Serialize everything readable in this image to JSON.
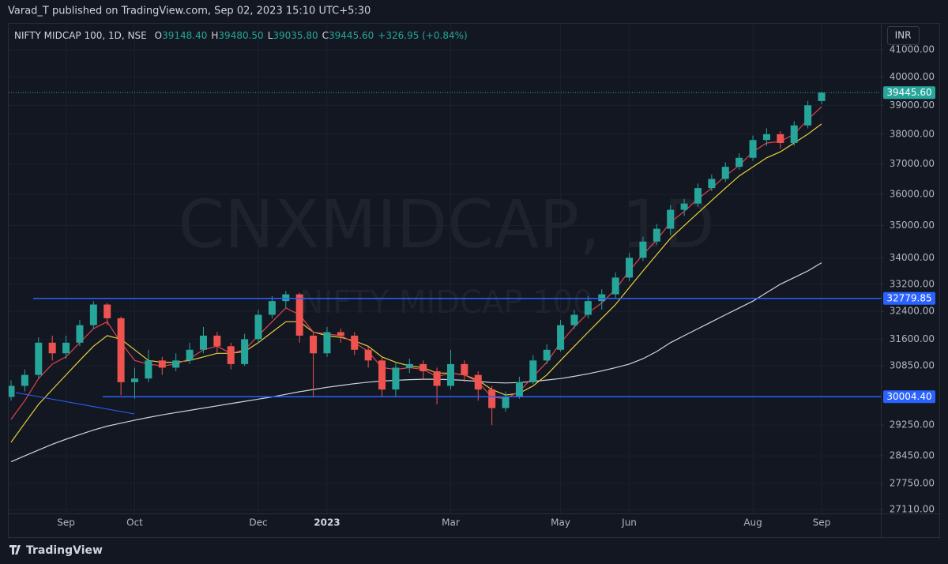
{
  "header": {
    "publisher": "Varad_T published on TradingView.com, Sep 02, 2023 15:10 UTC+5:30"
  },
  "footer": {
    "brand": "TradingView"
  },
  "chart_data": {
    "type": "candlestick",
    "title": "NIFTY MIDCAP 100, 1D, NSE",
    "ohlc_legend": [
      {
        "label": "O",
        "value": "39148.40"
      },
      {
        "label": "H",
        "value": "39480.50"
      },
      {
        "label": "L",
        "value": "39035.80"
      },
      {
        "label": "C",
        "value": "39445.60"
      }
    ],
    "change": "+326.95 (+0.84%)",
    "currency": "INR",
    "watermark": [
      "CNXMIDCAP, 1D",
      "NIFTY MIDCAP 100"
    ],
    "categories": [
      null,
      null,
      null,
      null,
      "Sep",
      null,
      null,
      null,
      null,
      "Oct",
      null,
      null,
      null,
      null,
      null,
      null,
      null,
      null,
      "Dec",
      null,
      null,
      null,
      null,
      "2023",
      null,
      null,
      null,
      null,
      null,
      null,
      null,
      null,
      "Mar",
      null,
      null,
      null,
      null,
      null,
      null,
      null,
      "May",
      null,
      null,
      null,
      null,
      "Jun",
      null,
      null,
      null,
      null,
      null,
      null,
      null,
      null,
      "Aug",
      null,
      null,
      null,
      null,
      "Sep"
    ],
    "open": [
      30000,
      30300,
      30600,
      31500,
      31200,
      31500,
      32000,
      32600,
      32200,
      30400,
      30500,
      31000,
      30800,
      31000,
      31300,
      31700,
      31400,
      30900,
      31600,
      32300,
      32700,
      32900,
      31700,
      31200,
      31800,
      31700,
      31300,
      31000,
      30200,
      30800,
      30900,
      30700,
      30300,
      30900,
      30600,
      30200,
      29700,
      30000,
      30400,
      31000,
      31300,
      32000,
      32300,
      32700,
      32900,
      33400,
      34000,
      34500,
      34900,
      35500,
      35700,
      36200,
      36500,
      36900,
      37200,
      37800,
      38000,
      37700,
      38300,
      39148.4
    ],
    "high": [
      30450,
      30750,
      31650,
      31700,
      31700,
      32150,
      32700,
      32650,
      32250,
      30800,
      31300,
      31100,
      31200,
      31500,
      31950,
      31800,
      31500,
      31750,
      32450,
      32850,
      33000,
      32950,
      31800,
      31950,
      31900,
      31800,
      31400,
      31100,
      30950,
      31050,
      31000,
      30800,
      31300,
      31000,
      30700,
      30300,
      30150,
      30550,
      31150,
      31450,
      32150,
      32450,
      32850,
      33050,
      33550,
      34150,
      34650,
      35050,
      35650,
      35850,
      36350,
      36650,
      37050,
      37350,
      37950,
      38200,
      38100,
      38450,
      39150,
      39480.5
    ],
    "low": [
      29900,
      30150,
      30500,
      31000,
      31050,
      31400,
      31900,
      32000,
      30050,
      29950,
      30400,
      30600,
      30700,
      30900,
      31200,
      31200,
      30750,
      30850,
      31500,
      32200,
      32500,
      31500,
      30000,
      31100,
      31500,
      31150,
      30800,
      30000,
      30000,
      30650,
      30500,
      29800,
      30200,
      30400,
      29900,
      29250,
      29600,
      29950,
      30350,
      30900,
      31250,
      31900,
      32200,
      32450,
      32800,
      33300,
      33900,
      34400,
      34700,
      35300,
      35600,
      36100,
      36400,
      36800,
      37100,
      37600,
      37500,
      37600,
      38200,
      39035.8
    ],
    "close": [
      30300,
      30600,
      31500,
      31200,
      31500,
      32000,
      32600,
      32200,
      30400,
      30500,
      31000,
      30800,
      31000,
      31300,
      31700,
      31400,
      30900,
      31600,
      32300,
      32700,
      32900,
      31700,
      31200,
      31800,
      31700,
      31300,
      31000,
      30200,
      30800,
      30900,
      30700,
      30300,
      30900,
      30600,
      30200,
      29700,
      30000,
      30400,
      31000,
      31300,
      32000,
      32300,
      32700,
      32900,
      33400,
      34000,
      34500,
      34900,
      35500,
      35700,
      36200,
      36500,
      36900,
      37200,
      37800,
      38000,
      37700,
      38300,
      39000,
      39445.6
    ],
    "up_color": "#26a69a",
    "down_color": "#ef5350",
    "series": [
      {
        "color": "#d1d4dc",
        "values": [
          28300,
          28450,
          28600,
          28750,
          28880,
          29000,
          29120,
          29220,
          29300,
          29380,
          29450,
          29520,
          29580,
          29640,
          29700,
          29760,
          29820,
          29880,
          29940,
          30000,
          30070,
          30140,
          30200,
          30260,
          30310,
          30360,
          30400,
          30430,
          30450,
          30470,
          30480,
          30480,
          30470,
          30450,
          30420,
          30390,
          30380,
          30390,
          30420,
          30460,
          30500,
          30560,
          30630,
          30710,
          30800,
          30900,
          31050,
          31250,
          31500,
          31700,
          31900,
          32100,
          32300,
          32500,
          32700,
          32950,
          33200,
          33400,
          33600,
          33850
        ]
      },
      {
        "color": "#e8d03a",
        "values": [
          28800,
          29300,
          29800,
          30200,
          30600,
          31000,
          31400,
          31700,
          31600,
          31300,
          31000,
          30950,
          30950,
          31000,
          31100,
          31200,
          31200,
          31250,
          31500,
          31800,
          32100,
          32100,
          31800,
          31700,
          31650,
          31550,
          31400,
          31100,
          30950,
          30850,
          30800,
          30650,
          30650,
          30600,
          30450,
          30200,
          30050,
          30100,
          30300,
          30600,
          31000,
          31400,
          31800,
          32200,
          32600,
          33100,
          33600,
          34100,
          34600,
          35000,
          35400,
          35800,
          36200,
          36600,
          36900,
          37200,
          37400,
          37700,
          38000,
          38350
        ]
      },
      {
        "color": "#e0424f",
        "values": [
          29400,
          29900,
          30500,
          30900,
          31100,
          31500,
          31900,
          32100,
          31500,
          31000,
          30900,
          30850,
          30900,
          31050,
          31300,
          31400,
          31200,
          31300,
          31700,
          32100,
          32500,
          32300,
          31800,
          31750,
          31700,
          31500,
          31250,
          30800,
          30750,
          30800,
          30750,
          30550,
          30650,
          30600,
          30400,
          30000,
          29950,
          30150,
          30550,
          30950,
          31500,
          31950,
          32350,
          32650,
          33050,
          33600,
          34100,
          34550,
          35100,
          35450,
          35850,
          36200,
          36600,
          36950,
          37400,
          37700,
          37750,
          38000,
          38500,
          38950
        ]
      }
    ],
    "hlines": [
      {
        "value": 32779.85,
        "label": "32779.85",
        "color": "#2962ff"
      },
      {
        "value": 30004.4,
        "label": "30004.40",
        "color": "#2962ff"
      }
    ],
    "last_price": {
      "value": 39445.6,
      "label": "39445.60",
      "color": "#26a69a"
    },
    "log_scale": true,
    "grid": true,
    "ylim": [
      27014,
      41970
    ],
    "yticks": [
      {
        "value": 41000,
        "label": "41000.00"
      },
      {
        "value": 40000,
        "label": "40000.00"
      },
      {
        "value": 39000,
        "label": "39000.00"
      },
      {
        "value": 38000,
        "label": "38000.00"
      },
      {
        "value": 37000,
        "label": "37000.00"
      },
      {
        "value": 36000,
        "label": "36000.00"
      },
      {
        "value": 35000,
        "label": "35000.00"
      },
      {
        "value": 34000,
        "label": "34000.00"
      },
      {
        "value": 33200,
        "label": "33200.00"
      },
      {
        "value": 32400,
        "label": "32400.00"
      },
      {
        "value": 31600,
        "label": "31600.00"
      },
      {
        "value": 30850,
        "label": "30850.00"
      },
      {
        "value": 29250,
        "label": "29250.00"
      },
      {
        "value": 28450,
        "label": "28450.00"
      },
      {
        "value": 27750,
        "label": "27750.00"
      },
      {
        "value": 27110,
        "label": "27110.00"
      }
    ]
  }
}
